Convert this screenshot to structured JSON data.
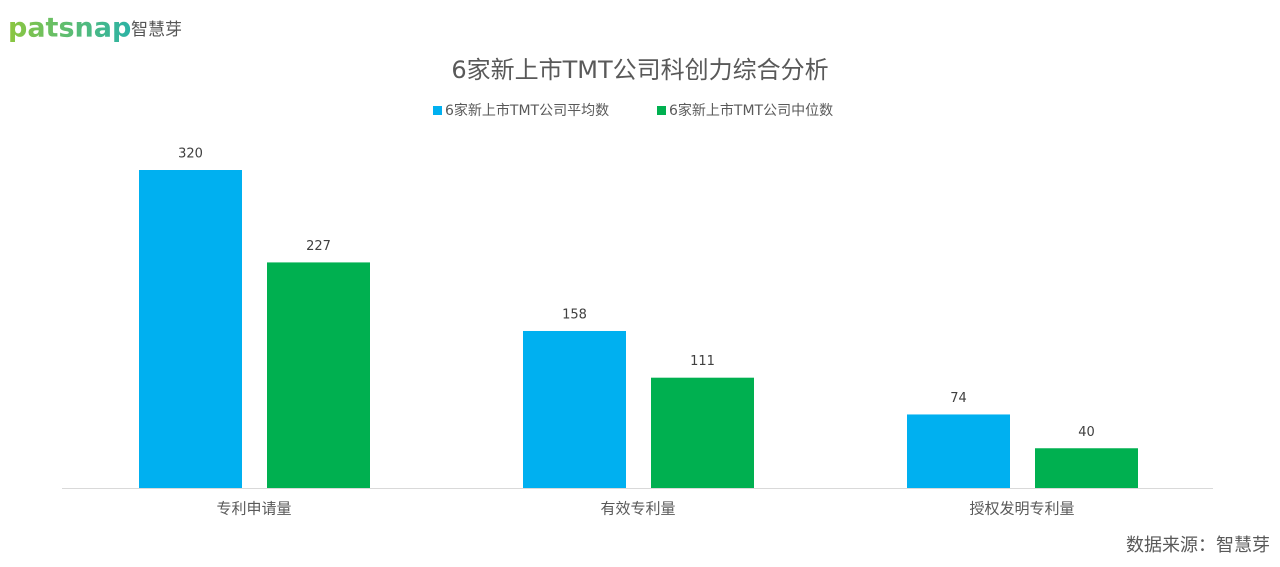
{
  "logo": {
    "brand": "patsnap",
    "name": "智慧芽"
  },
  "chart_data": {
    "type": "bar",
    "title": "6家新上市TMT公司科创力综合分析",
    "categories": [
      "专利申请量",
      "有效专利量",
      "授权发明专利量"
    ],
    "series": [
      {
        "name": "6家新上市TMT公司平均数",
        "color": "#00b0f0",
        "values": [
          320,
          158,
          74
        ]
      },
      {
        "name": "6家新上市TMT公司中位数",
        "color": "#00b050",
        "values": [
          227,
          111,
          40
        ]
      }
    ],
    "legend": "top"
  },
  "source": "数据来源：智慧芽"
}
